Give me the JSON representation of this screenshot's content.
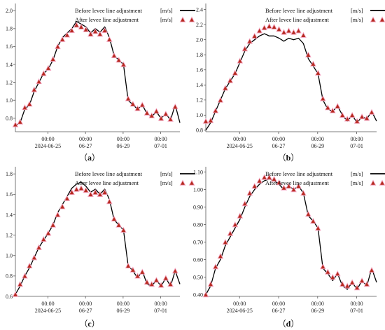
{
  "legend": {
    "before": "Before levee line adjustment",
    "after": "After levee line adjustment",
    "unit": "[m/s]"
  },
  "colors": {
    "before_line": "#000000",
    "after_marker": "#b52a1e",
    "after_marker_outline": "#f4a6c2",
    "axis": "#555555"
  },
  "chart_data": [
    {
      "type": "line",
      "panel_label": "a",
      "title": "",
      "xlabel": "",
      "ylabel": "",
      "xlim": [
        0,
        8.75
      ],
      "ylim": [
        0.65,
        2.08
      ],
      "yticks": [
        "0.8",
        "1.0",
        "1.2",
        "1.4",
        "1.6",
        "1.8",
        "2.0"
      ],
      "xtick_rows": [
        [
          "00:00",
          "00:00",
          "00:00",
          "00:00"
        ],
        [
          "2024-06-25",
          "06-27",
          "06-29",
          "07-01"
        ]
      ],
      "xtick_pos": [
        1.73,
        3.73,
        5.73,
        7.73
      ],
      "series": [
        {
          "name": "Before levee line adjustment",
          "style": "line",
          "x": [
            0,
            0.25,
            0.5,
            0.75,
            1.0,
            1.25,
            1.5,
            1.75,
            2.0,
            2.25,
            2.5,
            2.75,
            3.0,
            3.25,
            3.5,
            3.75,
            4.0,
            4.25,
            4.5,
            4.75,
            5.0,
            5.25,
            5.5,
            5.75,
            6.0,
            6.25,
            6.5,
            6.75,
            7.0,
            7.25,
            7.5,
            7.75,
            8.0,
            8.25,
            8.5,
            8.75
          ],
          "values": [
            0.72,
            0.75,
            0.9,
            0.95,
            1.1,
            1.2,
            1.3,
            1.35,
            1.45,
            1.6,
            1.7,
            1.75,
            1.8,
            1.88,
            1.85,
            1.82,
            1.75,
            1.8,
            1.76,
            1.82,
            1.7,
            1.5,
            1.45,
            1.4,
            1.0,
            0.95,
            0.9,
            0.95,
            0.85,
            0.82,
            0.87,
            0.8,
            0.85,
            0.78,
            0.95,
            0.75
          ]
        },
        {
          "name": "After levee line adjustment",
          "style": "markers",
          "x": [
            0,
            0.25,
            0.5,
            0.75,
            1.0,
            1.25,
            1.5,
            1.75,
            2.0,
            2.25,
            2.5,
            2.75,
            3.0,
            3.25,
            3.5,
            3.75,
            4.0,
            4.25,
            4.5,
            4.75,
            5.0,
            5.25,
            5.5,
            5.75,
            6.0,
            6.25,
            6.5,
            6.75,
            7.0,
            7.25,
            7.5,
            7.75,
            8.0,
            8.25,
            8.5
          ],
          "values": [
            0.73,
            0.76,
            0.92,
            0.96,
            1.12,
            1.21,
            1.3,
            1.36,
            1.46,
            1.6,
            1.68,
            1.73,
            1.78,
            1.84,
            1.82,
            1.79,
            1.74,
            1.77,
            1.74,
            1.78,
            1.68,
            1.5,
            1.45,
            1.4,
            1.02,
            0.96,
            0.91,
            0.95,
            0.86,
            0.83,
            0.88,
            0.8,
            0.85,
            0.79,
            0.93
          ]
        }
      ]
    },
    {
      "type": "line",
      "panel_label": "b",
      "title": "",
      "xlabel": "",
      "ylabel": "",
      "xlim": [
        0,
        8.75
      ],
      "ylim": [
        0.78,
        2.48
      ],
      "yticks": [
        "0.8",
        "1.0",
        "1.2",
        "1.4",
        "1.6",
        "1.8",
        "2.0",
        "2.2",
        "2.4"
      ],
      "xtick_rows": [
        [
          "00:00",
          "00:00",
          "00:00",
          "00:00"
        ],
        [
          "2024-06-25",
          "06-27",
          "06-29",
          "07-01"
        ]
      ],
      "xtick_pos": [
        1.73,
        3.73,
        5.73,
        7.73
      ],
      "series": [
        {
          "name": "Before levee line adjustment",
          "style": "line",
          "x": [
            0,
            0.25,
            0.5,
            0.75,
            1.0,
            1.25,
            1.5,
            1.75,
            2.0,
            2.25,
            2.5,
            2.75,
            3.0,
            3.25,
            3.5,
            3.75,
            4.0,
            4.25,
            4.5,
            4.75,
            5.0,
            5.25,
            5.5,
            5.75,
            6.0,
            6.25,
            6.5,
            6.75,
            7.0,
            7.25,
            7.5,
            7.75,
            8.0,
            8.25,
            8.5,
            8.75
          ],
          "values": [
            0.8,
            0.9,
            1.05,
            1.2,
            1.35,
            1.45,
            1.55,
            1.7,
            1.85,
            1.95,
            2.0,
            2.05,
            2.08,
            2.05,
            2.05,
            2.02,
            1.98,
            2.02,
            2.0,
            2.02,
            1.95,
            1.75,
            1.65,
            1.55,
            1.2,
            1.08,
            1.05,
            1.12,
            1.0,
            0.92,
            1.0,
            0.9,
            0.98,
            0.95,
            1.05,
            0.92
          ]
        },
        {
          "name": "After levee line adjustment",
          "style": "markers",
          "x": [
            0,
            0.25,
            0.5,
            0.75,
            1.0,
            1.25,
            1.5,
            1.75,
            2.0,
            2.25,
            2.5,
            2.75,
            3.0,
            3.25,
            3.5,
            3.75,
            4.0,
            4.25,
            4.5,
            4.75,
            5.0,
            5.25,
            5.5,
            5.75,
            6.0,
            6.25,
            6.5,
            6.75,
            7.0,
            7.25,
            7.5,
            7.75,
            8.0,
            8.25,
            8.5
          ],
          "values": [
            0.92,
            0.93,
            1.06,
            1.2,
            1.36,
            1.46,
            1.56,
            1.72,
            1.88,
            1.98,
            2.05,
            2.12,
            2.16,
            2.18,
            2.17,
            2.14,
            2.1,
            2.12,
            2.1,
            2.12,
            2.06,
            1.8,
            1.68,
            1.56,
            1.22,
            1.1,
            1.06,
            1.12,
            1.0,
            0.95,
            1.0,
            0.92,
            0.98,
            0.96,
            1.04
          ]
        }
      ]
    },
    {
      "type": "line",
      "panel_label": "c",
      "title": "",
      "xlabel": "",
      "ylabel": "",
      "xlim": [
        0,
        8.75
      ],
      "ylim": [
        0.6,
        1.87
      ],
      "yticks": [
        "0.6",
        "0.8",
        "1.0",
        "1.2",
        "1.4",
        "1.6",
        "1.8"
      ],
      "xtick_rows": [
        [
          "00:00",
          "00:00",
          "00:00",
          "00:00"
        ],
        [
          "2024-06-25",
          "06-27",
          "06-29",
          "07-01"
        ]
      ],
      "xtick_pos": [
        1.73,
        3.73,
        5.73,
        7.73
      ],
      "series": [
        {
          "name": "Before levee line adjustment",
          "style": "line",
          "x": [
            0,
            0.25,
            0.5,
            0.75,
            1.0,
            1.25,
            1.5,
            1.75,
            2.0,
            2.25,
            2.5,
            2.75,
            3.0,
            3.25,
            3.5,
            3.75,
            4.0,
            4.25,
            4.5,
            4.75,
            5.0,
            5.25,
            5.5,
            5.75,
            6.0,
            6.25,
            6.5,
            6.75,
            7.0,
            7.25,
            7.5,
            7.75,
            8.0,
            8.25,
            8.5,
            8.75
          ],
          "values": [
            0.62,
            0.7,
            0.8,
            0.88,
            0.98,
            1.08,
            1.15,
            1.22,
            1.3,
            1.42,
            1.5,
            1.58,
            1.66,
            1.7,
            1.72,
            1.68,
            1.62,
            1.65,
            1.6,
            1.65,
            1.55,
            1.35,
            1.3,
            1.25,
            0.9,
            0.85,
            0.78,
            0.85,
            0.72,
            0.7,
            0.76,
            0.7,
            0.78,
            0.7,
            0.85,
            0.72
          ]
        },
        {
          "name": "After levee line adjustment",
          "style": "markers",
          "x": [
            0,
            0.25,
            0.5,
            0.75,
            1.0,
            1.25,
            1.5,
            1.75,
            2.0,
            2.25,
            2.5,
            2.75,
            3.0,
            3.25,
            3.5,
            3.75,
            4.0,
            4.25,
            4.5,
            4.75,
            5.0,
            5.25,
            5.5,
            5.75,
            6.0,
            6.25,
            6.5,
            6.75,
            7.0,
            7.25,
            7.5,
            7.75,
            8.0,
            8.25,
            8.5
          ],
          "values": [
            0.62,
            0.72,
            0.8,
            0.9,
            0.98,
            1.08,
            1.16,
            1.22,
            1.3,
            1.4,
            1.48,
            1.56,
            1.62,
            1.65,
            1.66,
            1.64,
            1.6,
            1.62,
            1.6,
            1.62,
            1.53,
            1.36,
            1.3,
            1.25,
            0.9,
            0.86,
            0.8,
            0.84,
            0.74,
            0.72,
            0.76,
            0.71,
            0.78,
            0.72,
            0.85
          ]
        }
      ]
    },
    {
      "type": "line",
      "panel_label": "d",
      "title": "",
      "xlabel": "",
      "ylabel": "",
      "xlim": [
        0,
        8.75
      ],
      "ylim": [
        0.39,
        1.13
      ],
      "yticks": [
        "0.40",
        "0.50",
        "0.60",
        "0.70",
        "0.80",
        "0.90",
        "1.00",
        "1.10"
      ],
      "xtick_rows": [
        [
          "00:00",
          "00:00",
          "00:00",
          "00:00"
        ],
        [
          "2024-06-25",
          "06-27",
          "06-29",
          "07-01"
        ]
      ],
      "xtick_pos": [
        1.73,
        3.73,
        5.73,
        7.73
      ],
      "series": [
        {
          "name": "Before levee line adjustment",
          "style": "line",
          "x": [
            0,
            0.25,
            0.5,
            0.75,
            1.0,
            1.25,
            1.5,
            1.75,
            2.0,
            2.25,
            2.5,
            2.75,
            3.0,
            3.25,
            3.5,
            3.75,
            4.0,
            4.25,
            4.5,
            4.75,
            5.0,
            5.25,
            5.5,
            5.75,
            6.0,
            6.25,
            6.5,
            6.75,
            7.0,
            7.25,
            7.5,
            7.75,
            8.0,
            8.25,
            8.5,
            8.75
          ],
          "values": [
            0.4,
            0.45,
            0.55,
            0.6,
            0.68,
            0.73,
            0.78,
            0.83,
            0.9,
            0.96,
            1.0,
            1.03,
            1.05,
            1.06,
            1.05,
            1.03,
            1.0,
            1.02,
            1.0,
            1.02,
            0.98,
            0.85,
            0.82,
            0.78,
            0.55,
            0.52,
            0.48,
            0.52,
            0.45,
            0.43,
            0.47,
            0.43,
            0.48,
            0.45,
            0.55,
            0.47
          ]
        },
        {
          "name": "After levee line adjustment",
          "style": "markers",
          "x": [
            0,
            0.25,
            0.5,
            0.75,
            1.0,
            1.25,
            1.5,
            1.75,
            2.0,
            2.25,
            2.5,
            2.75,
            3.0,
            3.25,
            3.5,
            3.75,
            4.0,
            4.25,
            4.5,
            4.75,
            5.0,
            5.25,
            5.5,
            5.75,
            6.0,
            6.25,
            6.5,
            6.75,
            7.0,
            7.25,
            7.5,
            7.75,
            8.0,
            8.25,
            8.5
          ],
          "values": [
            0.4,
            0.46,
            0.56,
            0.62,
            0.7,
            0.75,
            0.8,
            0.85,
            0.92,
            0.98,
            1.02,
            1.05,
            1.07,
            1.07,
            1.06,
            1.04,
            1.01,
            1.02,
            1.0,
            1.02,
            0.98,
            0.86,
            0.82,
            0.78,
            0.56,
            0.53,
            0.5,
            0.52,
            0.46,
            0.45,
            0.47,
            0.44,
            0.48,
            0.46,
            0.54
          ]
        }
      ]
    }
  ]
}
